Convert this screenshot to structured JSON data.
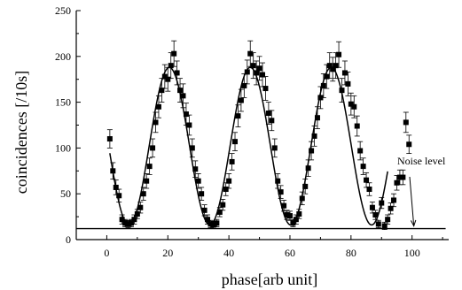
{
  "chart_data": {
    "type": "scatter",
    "xlabel": "phase[arb unit]",
    "ylabel": "coincidences [/10s]",
    "xlim": [
      -10,
      112
    ],
    "ylim": [
      0,
      250
    ],
    "xticks": [
      0,
      20,
      40,
      60,
      80,
      100
    ],
    "yticks": [
      0,
      50,
      100,
      150,
      200,
      250
    ],
    "grid": false,
    "legend": "none",
    "annotation": {
      "text": "Noise level",
      "points_to": [
        100,
        12
      ]
    },
    "noise_level": 12,
    "fit_curve_x_range": [
      1,
      92
    ],
    "fit_curve_model": {
      "offset": 102,
      "amplitude": 86,
      "period": 26.5,
      "phase_at": 20.5
    },
    "series": [
      {
        "name": "",
        "kind": "points-with-errorbars",
        "x": [
          1,
          2,
          3,
          4,
          5,
          6,
          7,
          8,
          9,
          10,
          11,
          12,
          13,
          14,
          15,
          16,
          17,
          18,
          19,
          20,
          21,
          22,
          23,
          24,
          25,
          26,
          27,
          28,
          29,
          30,
          31,
          32,
          33,
          34,
          35,
          36,
          37,
          38,
          39,
          40,
          41,
          42,
          43,
          44,
          45,
          46,
          47,
          48,
          49,
          50,
          51,
          52,
          53,
          54,
          55,
          56,
          57,
          58,
          59,
          60,
          61,
          62,
          63,
          64,
          65,
          66,
          67,
          68,
          69,
          70,
          71,
          72,
          73,
          74,
          75,
          76,
          77,
          78,
          79,
          80,
          81,
          82,
          83,
          84,
          85,
          86,
          87,
          88,
          89,
          90,
          91,
          92,
          93,
          94,
          95,
          96,
          97,
          98,
          99
        ],
        "y": [
          110,
          75,
          57,
          48,
          22,
          18,
          17,
          18,
          22,
          28,
          35,
          50,
          64,
          80,
          100,
          128,
          145,
          163,
          178,
          175,
          190,
          203,
          182,
          163,
          157,
          137,
          125,
          100,
          77,
          64,
          50,
          32,
          22,
          17,
          16,
          18,
          30,
          38,
          55,
          64,
          85,
          107,
          135,
          152,
          168,
          183,
          203,
          190,
          182,
          187,
          180,
          165,
          138,
          130,
          100,
          64,
          52,
          37,
          27,
          26,
          18,
          22,
          28,
          45,
          58,
          78,
          97,
          113,
          133,
          155,
          168,
          178,
          190,
          186,
          190,
          202,
          163,
          182,
          170,
          148,
          145,
          124,
          97,
          80,
          65,
          55,
          35,
          27,
          17,
          40,
          15,
          22,
          34,
          43,
          62,
          68,
          68,
          128,
          104
        ],
        "err": [
          10,
          9,
          8,
          7,
          5,
          4,
          4,
          4,
          5,
          5,
          6,
          7,
          8,
          9,
          10,
          11,
          12,
          13,
          13,
          13,
          14,
          14,
          13,
          13,
          13,
          12,
          11,
          10,
          9,
          8,
          7,
          6,
          5,
          4,
          4,
          4,
          5,
          6,
          7,
          8,
          9,
          10,
          12,
          12,
          13,
          13,
          14,
          14,
          13,
          13,
          13,
          13,
          12,
          11,
          10,
          8,
          7,
          6,
          5,
          5,
          4,
          5,
          5,
          7,
          8,
          9,
          10,
          11,
          12,
          12,
          13,
          13,
          14,
          13,
          14,
          14,
          13,
          13,
          13,
          12,
          12,
          11,
          10,
          9,
          8,
          7,
          6,
          5,
          4,
          6,
          4,
          5,
          6,
          7,
          8,
          8,
          8,
          11,
          10
        ]
      }
    ]
  }
}
